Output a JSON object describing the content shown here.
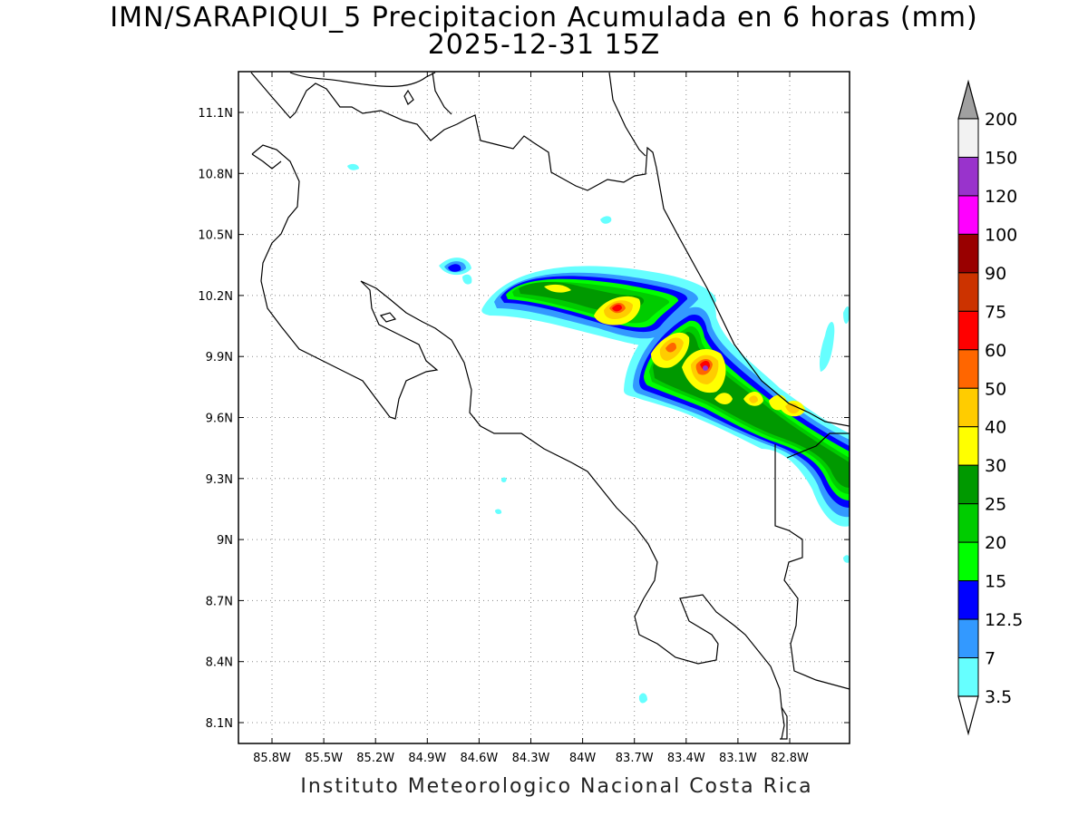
{
  "title_line1": "IMN/SARAPIQUI_5 Precipitacion Acumulada en 6 horas (mm)",
  "title_line2": "2025-12-31 15Z",
  "footer": "Instituto Meteorologico Nacional Costa Rica",
  "map": {
    "lon_ticks": [
      "85.8W",
      "85.5W",
      "85.2W",
      "84.9W",
      "84.6W",
      "84.3W",
      "84W",
      "83.7W",
      "83.4W",
      "83.1W",
      "82.8W"
    ],
    "lat_ticks": [
      "11.1N",
      "10.8N",
      "10.5N",
      "10.2N",
      "9.9N",
      "9.6N",
      "9.3N",
      "9N",
      "8.7N",
      "8.4N",
      "8.1N"
    ],
    "grid": "dotted"
  },
  "colorbar": {
    "labels": [
      "200",
      "150",
      "120",
      "100",
      "90",
      "75",
      "60",
      "50",
      "40",
      "30",
      "25",
      "20",
      "15",
      "12.5",
      "7",
      "3.5"
    ],
    "colors": [
      "#f2f2f2",
      "#9933cc",
      "#ff00ff",
      "#990000",
      "#cc3300",
      "#ff0000",
      "#ff6600",
      "#ffcc00",
      "#ffff00",
      "#009900",
      "#00cc00",
      "#00ff00",
      "#0000ff",
      "#3399ff",
      "#66ffff"
    ],
    "over_color": "#a0a0a0",
    "under_color": "#ffffff"
  }
}
